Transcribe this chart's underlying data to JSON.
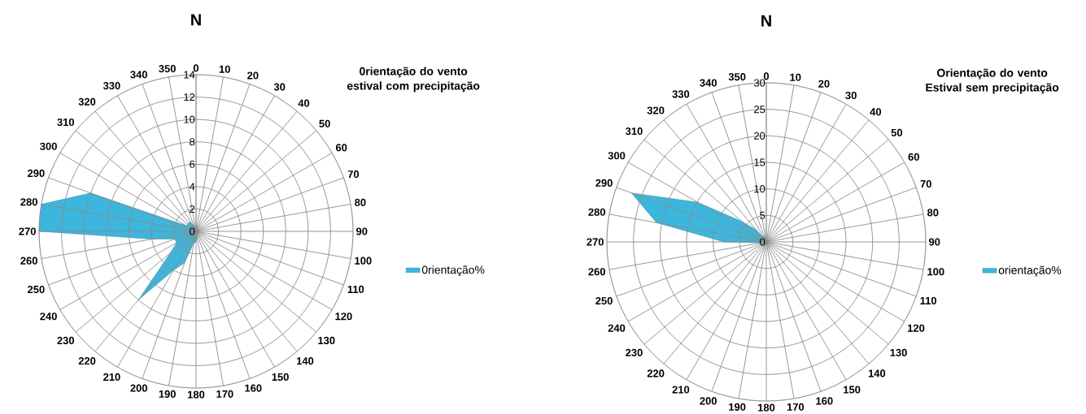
{
  "chart_data": [
    {
      "type": "radar",
      "title": "N",
      "subtitle": "0rientação do vento estival com precipitação",
      "categories": [
        "0",
        "10",
        "20",
        "30",
        "40",
        "50",
        "60",
        "70",
        "80",
        "90",
        "100",
        "110",
        "120",
        "130",
        "140",
        "150",
        "160",
        "170",
        "180",
        "190",
        "200",
        "210",
        "220",
        "230",
        "240",
        "250",
        "260",
        "270",
        "280",
        "290",
        "300",
        "310",
        "320",
        "330",
        "340",
        "350"
      ],
      "series": [
        {
          "name": "0rientação%",
          "color": "#3cb6dd",
          "values": [
            0.5,
            0.3,
            0.3,
            0.2,
            0.2,
            0.2,
            0.2,
            0.2,
            0.2,
            0.2,
            0.2,
            0.2,
            0.2,
            0.2,
            0.2,
            0.2,
            0.3,
            0.5,
            1,
            1,
            3,
            4,
            8,
            3,
            2,
            2,
            4,
            14,
            14,
            10,
            1,
            1,
            1,
            1,
            0.5,
            0.5
          ]
        }
      ],
      "ylim": [
        0,
        14
      ],
      "yticks": [
        0,
        2,
        4,
        6,
        8,
        10,
        12,
        14
      ],
      "grid": true,
      "legend": "right"
    },
    {
      "type": "radar",
      "title": "N",
      "subtitle": "Orientação do vento Estival sem precipitação",
      "categories": [
        "0",
        "10",
        "20",
        "30",
        "40",
        "50",
        "60",
        "70",
        "80",
        "90",
        "100",
        "110",
        "120",
        "130",
        "140",
        "150",
        "160",
        "170",
        "180",
        "190",
        "200",
        "210",
        "220",
        "230",
        "240",
        "250",
        "260",
        "270",
        "280",
        "290",
        "300",
        "310",
        "320",
        "330",
        "340",
        "350"
      ],
      "series": [
        {
          "name": "orientação%",
          "color": "#3cb6dd",
          "values": [
            0.5,
            0.3,
            0.3,
            0.3,
            0.3,
            0.3,
            0.3,
            0.3,
            0.3,
            0.3,
            0.3,
            0.3,
            0.3,
            0.3,
            0.3,
            0.3,
            0.3,
            0.3,
            0.3,
            0.3,
            0.3,
            0.3,
            0.3,
            0.3,
            0.5,
            0.5,
            1,
            8,
            21,
            27,
            15,
            6,
            3,
            1,
            1,
            1
          ]
        }
      ],
      "ylim": [
        0,
        30
      ],
      "yticks": [
        0,
        5,
        10,
        15,
        20,
        25,
        30
      ],
      "grid": true,
      "legend": "right"
    }
  ]
}
